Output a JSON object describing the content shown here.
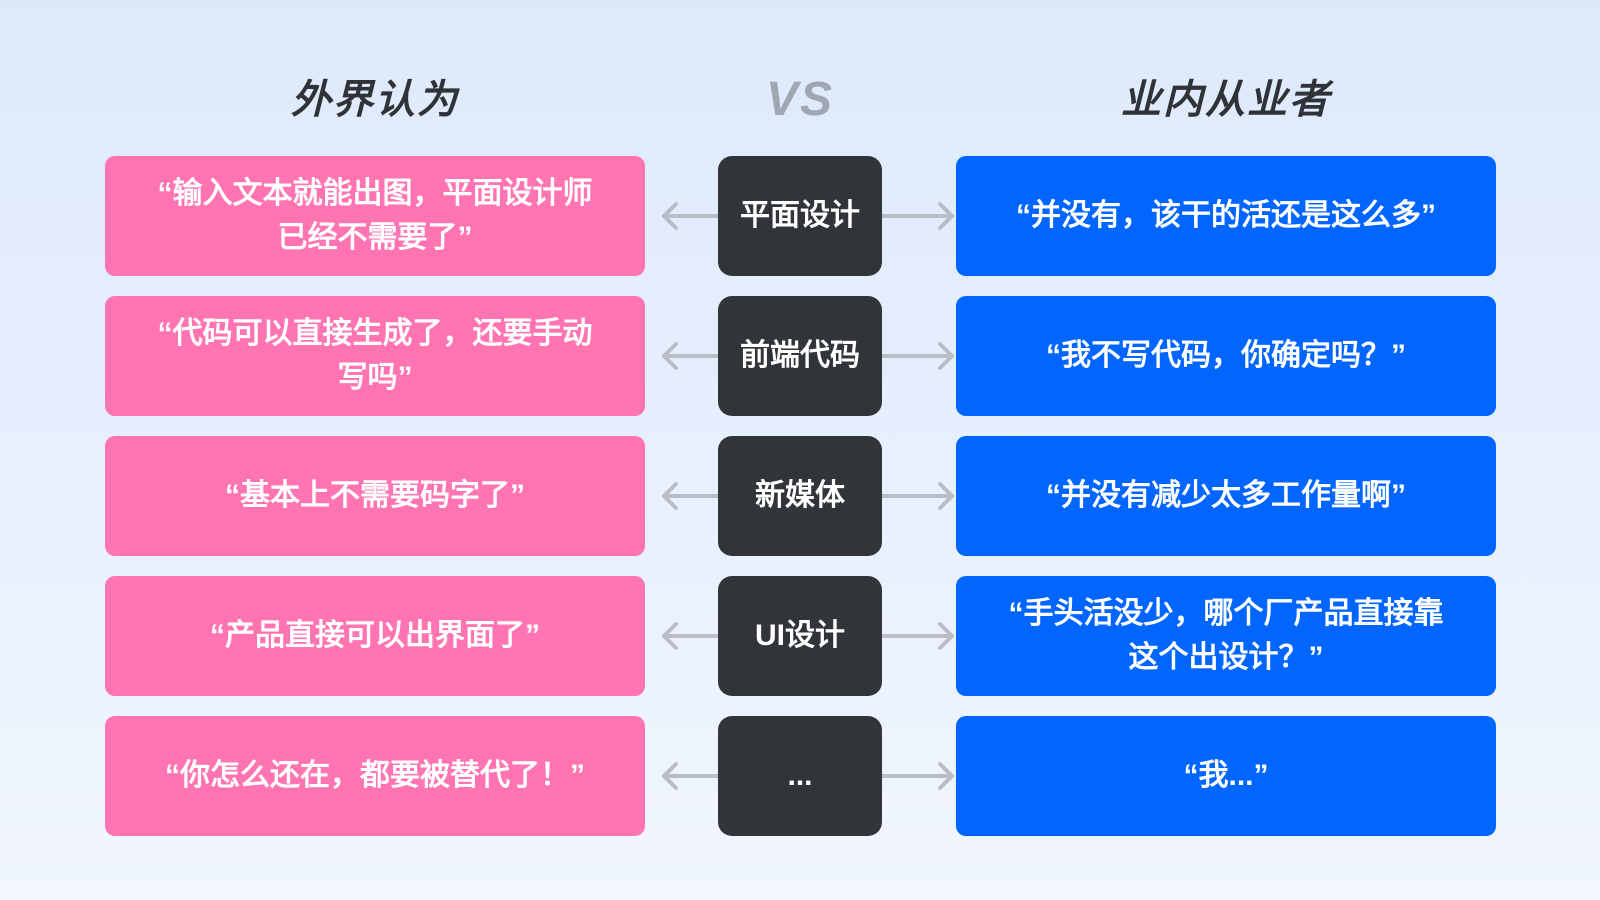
{
  "headers": {
    "left": "外界认为",
    "middle": "VS",
    "right": "业内从业者"
  },
  "colors": {
    "outside": "#ff74b1",
    "category": "#313439",
    "insider": "#0066ff",
    "arrow": "#b9bec6"
  },
  "rows": [
    {
      "outside": "“输入文本就能出图，平面设计师已经不需要了”",
      "category": "平面设计",
      "insider": "“并没有，该干的活还是这么多”"
    },
    {
      "outside": "“代码可以直接生成了，还要手动写吗”",
      "category": "前端代码",
      "insider": "“我不写代码，你确定吗？”"
    },
    {
      "outside": "“基本上不需要码字了”",
      "category": "新媒体",
      "insider": "“并没有减少太多工作量啊”"
    },
    {
      "outside": "“产品直接可以出界面了”",
      "category": "UI设计",
      "insider": "“手头活没少，哪个厂产品直接靠这个出设计？”"
    },
    {
      "outside": "“你怎么还在，都要被替代了！”",
      "category": "...",
      "insider": "“我...”"
    }
  ]
}
